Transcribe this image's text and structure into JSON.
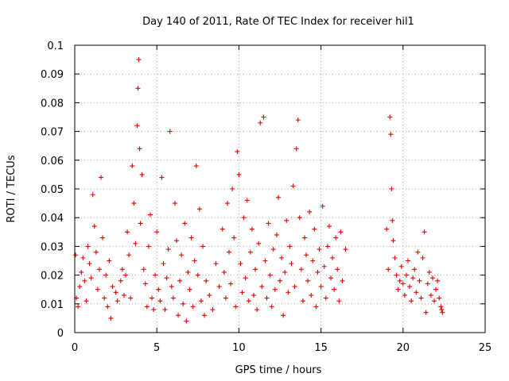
{
  "chart_data": {
    "type": "scatter",
    "title": "Day 140 of 2011, Rate Of TEC Index for receiver hil1",
    "xlabel": "GPS time / hours",
    "ylabel": "ROTI / TECUs",
    "xlim": [
      0,
      25
    ],
    "ylim": [
      0,
      0.1
    ],
    "xticks": [
      0,
      5,
      10,
      15,
      20,
      25
    ],
    "yticks": [
      0,
      0.01,
      0.02,
      0.03,
      0.04,
      0.05,
      0.06,
      0.07,
      0.08,
      0.09,
      0.1
    ],
    "xtick_labels": [
      "0",
      "5",
      "10",
      "15",
      "20",
      "25"
    ],
    "ytick_labels": [
      "0",
      "0.01",
      "0.02",
      "0.03",
      "0.04",
      "0.05",
      "0.06",
      "0.07",
      "0.08",
      "0.09",
      "0.1"
    ],
    "grid": true,
    "marker": "plus",
    "color": "#e60000",
    "series": [
      {
        "points": [
          [
            0.05,
            0.027
          ],
          [
            0.1,
            0.012
          ],
          [
            0.2,
            0.009
          ],
          [
            0.3,
            0.016
          ],
          [
            0.4,
            0.021
          ],
          [
            0.5,
            0.026
          ],
          [
            0.6,
            0.018
          ],
          [
            0.7,
            0.011
          ],
          [
            0.8,
            0.03
          ],
          [
            0.9,
            0.024
          ],
          [
            1.0,
            0.019
          ],
          [
            1.1,
            0.048
          ],
          [
            1.2,
            0.037
          ],
          [
            1.3,
            0.028
          ],
          [
            1.4,
            0.015
          ],
          [
            1.5,
            0.022
          ],
          [
            1.6,
            0.054
          ],
          [
            1.7,
            0.033
          ],
          [
            1.8,
            0.012
          ],
          [
            1.9,
            0.02
          ],
          [
            2.0,
            0.009
          ],
          [
            2.1,
            0.025
          ],
          [
            2.2,
            0.005
          ],
          [
            2.3,
            0.016
          ],
          [
            2.5,
            0.014
          ],
          [
            2.6,
            0.011
          ],
          [
            2.8,
            0.018
          ],
          [
            2.9,
            0.022
          ],
          [
            3.0,
            0.013
          ],
          [
            3.1,
            0.02
          ],
          [
            3.2,
            0.035
          ],
          [
            3.3,
            0.027
          ],
          [
            3.4,
            0.012
          ],
          [
            3.5,
            0.058
          ],
          [
            3.6,
            0.045
          ],
          [
            3.7,
            0.031
          ],
          [
            3.8,
            0.072
          ],
          [
            3.85,
            0.085
          ],
          [
            3.9,
            0.095
          ],
          [
            3.95,
            0.064
          ],
          [
            4.0,
            0.038
          ],
          [
            4.1,
            0.055
          ],
          [
            4.2,
            0.022
          ],
          [
            4.3,
            0.017
          ],
          [
            4.4,
            0.009
          ],
          [
            4.5,
            0.03
          ],
          [
            4.6,
            0.041
          ],
          [
            4.7,
            0.012
          ],
          [
            4.8,
            0.008
          ],
          [
            4.9,
            0.02
          ],
          [
            5.0,
            0.035
          ],
          [
            5.1,
            0.015
          ],
          [
            5.2,
            0.011
          ],
          [
            5.3,
            0.054
          ],
          [
            5.4,
            0.024
          ],
          [
            5.5,
            0.008
          ],
          [
            5.6,
            0.019
          ],
          [
            5.7,
            0.029
          ],
          [
            5.8,
            0.07
          ],
          [
            5.9,
            0.016
          ],
          [
            6.0,
            0.012
          ],
          [
            6.1,
            0.045
          ],
          [
            6.2,
            0.032
          ],
          [
            6.3,
            0.006
          ],
          [
            6.4,
            0.018
          ],
          [
            6.5,
            0.027
          ],
          [
            6.6,
            0.01
          ],
          [
            6.7,
            0.038
          ],
          [
            6.8,
            0.004
          ],
          [
            6.9,
            0.021
          ],
          [
            7.0,
            0.015
          ],
          [
            7.1,
            0.033
          ],
          [
            7.2,
            0.009
          ],
          [
            7.3,
            0.025
          ],
          [
            7.4,
            0.058
          ],
          [
            7.5,
            0.02
          ],
          [
            7.6,
            0.043
          ],
          [
            7.7,
            0.011
          ],
          [
            7.8,
            0.03
          ],
          [
            7.9,
            0.006
          ],
          [
            8.0,
            0.018
          ],
          [
            8.2,
            0.013
          ],
          [
            8.4,
            0.008
          ],
          [
            8.6,
            0.024
          ],
          [
            8.8,
            0.016
          ],
          [
            9.0,
            0.036
          ],
          [
            9.1,
            0.021
          ],
          [
            9.2,
            0.012
          ],
          [
            9.3,
            0.045
          ],
          [
            9.4,
            0.028
          ],
          [
            9.5,
            0.017
          ],
          [
            9.6,
            0.05
          ],
          [
            9.7,
            0.033
          ],
          [
            9.8,
            0.009
          ],
          [
            9.9,
            0.063
          ],
          [
            10.0,
            0.055
          ],
          [
            10.1,
            0.024
          ],
          [
            10.2,
            0.014
          ],
          [
            10.3,
            0.04
          ],
          [
            10.4,
            0.019
          ],
          [
            10.5,
            0.046
          ],
          [
            10.6,
            0.011
          ],
          [
            10.7,
            0.028
          ],
          [
            10.8,
            0.036
          ],
          [
            10.9,
            0.013
          ],
          [
            11.0,
            0.022
          ],
          [
            11.1,
            0.008
          ],
          [
            11.2,
            0.031
          ],
          [
            11.3,
            0.073
          ],
          [
            11.4,
            0.016
          ],
          [
            11.5,
            0.075
          ],
          [
            11.6,
            0.025
          ],
          [
            11.7,
            0.012
          ],
          [
            11.8,
            0.038
          ],
          [
            11.9,
            0.02
          ],
          [
            12.0,
            0.009
          ],
          [
            12.1,
            0.029
          ],
          [
            12.2,
            0.015
          ],
          [
            12.3,
            0.034
          ],
          [
            12.4,
            0.047
          ],
          [
            12.5,
            0.018
          ],
          [
            12.6,
            0.026
          ],
          [
            12.7,
            0.006
          ],
          [
            12.8,
            0.021
          ],
          [
            12.9,
            0.039
          ],
          [
            13.0,
            0.014
          ],
          [
            13.1,
            0.03
          ],
          [
            13.2,
            0.024
          ],
          [
            13.3,
            0.051
          ],
          [
            13.4,
            0.016
          ],
          [
            13.5,
            0.064
          ],
          [
            13.6,
            0.074
          ],
          [
            13.7,
            0.04
          ],
          [
            13.8,
            0.022
          ],
          [
            13.9,
            0.011
          ],
          [
            14.0,
            0.033
          ],
          [
            14.1,
            0.027
          ],
          [
            14.2,
            0.018
          ],
          [
            14.3,
            0.042
          ],
          [
            14.4,
            0.013
          ],
          [
            14.5,
            0.025
          ],
          [
            14.6,
            0.036
          ],
          [
            14.7,
            0.009
          ],
          [
            14.8,
            0.021
          ],
          [
            14.9,
            0.029
          ],
          [
            15.0,
            0.016
          ],
          [
            15.1,
            0.044
          ],
          [
            15.2,
            0.023
          ],
          [
            15.3,
            0.012
          ],
          [
            15.4,
            0.03
          ],
          [
            15.5,
            0.037
          ],
          [
            15.6,
            0.019
          ],
          [
            15.7,
            0.026
          ],
          [
            15.8,
            0.015
          ],
          [
            15.9,
            0.033
          ],
          [
            16.0,
            0.022
          ],
          [
            16.1,
            0.011
          ],
          [
            16.2,
            0.035
          ],
          [
            16.3,
            0.018
          ],
          [
            16.5,
            0.029
          ],
          [
            19.0,
            0.036
          ],
          [
            19.1,
            0.022
          ],
          [
            19.2,
            0.075
          ],
          [
            19.25,
            0.069
          ],
          [
            19.3,
            0.05
          ],
          [
            19.35,
            0.039
          ],
          [
            19.4,
            0.032
          ],
          [
            19.5,
            0.026
          ],
          [
            19.6,
            0.02
          ],
          [
            19.7,
            0.015
          ],
          [
            19.8,
            0.018
          ],
          [
            19.9,
            0.023
          ],
          [
            20.0,
            0.017
          ],
          [
            20.1,
            0.013
          ],
          [
            20.2,
            0.02
          ],
          [
            20.3,
            0.025
          ],
          [
            20.4,
            0.016
          ],
          [
            20.5,
            0.011
          ],
          [
            20.6,
            0.019
          ],
          [
            20.7,
            0.022
          ],
          [
            20.8,
            0.014
          ],
          [
            20.9,
            0.028
          ],
          [
            21.0,
            0.018
          ],
          [
            21.1,
            0.012
          ],
          [
            21.2,
            0.026
          ],
          [
            21.3,
            0.035
          ],
          [
            21.4,
            0.007
          ],
          [
            21.5,
            0.017
          ],
          [
            21.6,
            0.021
          ],
          [
            21.7,
            0.013
          ],
          [
            21.8,
            0.019
          ],
          [
            21.9,
            0.011
          ],
          [
            22.0,
            0.015
          ],
          [
            22.1,
            0.018
          ],
          [
            22.2,
            0.012
          ],
          [
            22.3,
            0.009
          ],
          [
            22.35,
            0.008
          ],
          [
            22.4,
            0.007
          ]
        ]
      }
    ]
  }
}
